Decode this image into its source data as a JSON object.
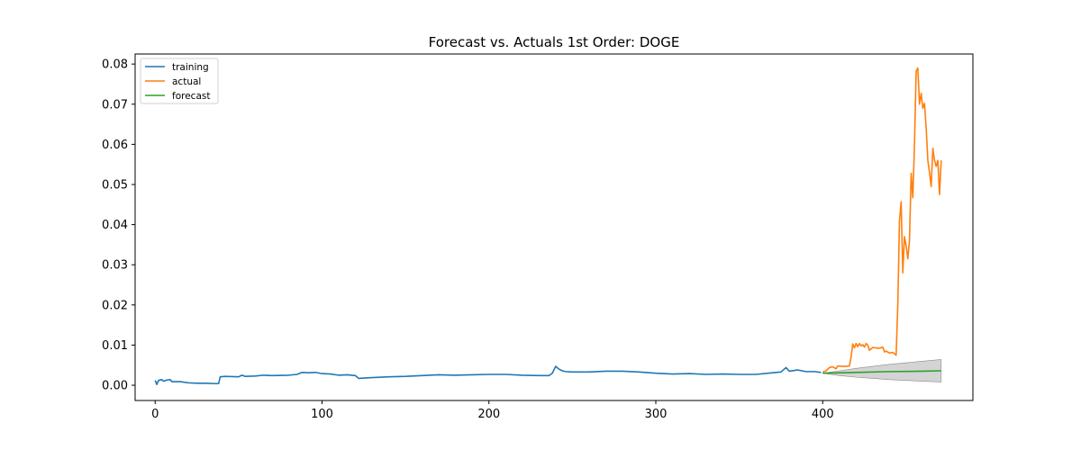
{
  "chart_data": {
    "type": "line",
    "title": "Forecast vs. Actuals 1st Order: DOGE",
    "xlabel": "",
    "ylabel": "",
    "xlim": [
      -12,
      490
    ],
    "ylim": [
      -0.0038,
      0.0825
    ],
    "xticks": [
      0,
      100,
      200,
      300,
      400
    ],
    "yticks": [
      0.0,
      0.01,
      0.02,
      0.03,
      0.04,
      0.05,
      0.06,
      0.07,
      0.08
    ],
    "ytick_labels": [
      "0.00",
      "0.01",
      "0.02",
      "0.03",
      "0.04",
      "0.05",
      "0.06",
      "0.07",
      "0.08"
    ],
    "grid": false,
    "legend_position": "top-left",
    "colors": {
      "training": "#1f77b4",
      "actual": "#ff7f0e",
      "forecast": "#2ca02c",
      "band": "#b0b0b0"
    },
    "series": [
      {
        "name": "training",
        "points": [
          [
            0,
            0.0012
          ],
          [
            1,
            0.0002
          ],
          [
            2,
            0.0012
          ],
          [
            4,
            0.0014
          ],
          [
            5,
            0.001
          ],
          [
            7,
            0.0013
          ],
          [
            9,
            0.0014
          ],
          [
            10,
            0.0009
          ],
          [
            15,
            0.0009
          ],
          [
            20,
            0.0006
          ],
          [
            25,
            0.0005
          ],
          [
            30,
            0.0005
          ],
          [
            36,
            0.0004
          ],
          [
            38,
            0.0004
          ],
          [
            39,
            0.0021
          ],
          [
            42,
            0.0022
          ],
          [
            50,
            0.0021
          ],
          [
            52,
            0.0025
          ],
          [
            54,
            0.0022
          ],
          [
            60,
            0.0023
          ],
          [
            65,
            0.0025
          ],
          [
            70,
            0.0024
          ],
          [
            80,
            0.0025
          ],
          [
            85,
            0.0027
          ],
          [
            88,
            0.0032
          ],
          [
            92,
            0.0031
          ],
          [
            96,
            0.0032
          ],
          [
            100,
            0.0029
          ],
          [
            105,
            0.0028
          ],
          [
            110,
            0.0025
          ],
          [
            115,
            0.0026
          ],
          [
            120,
            0.0024
          ],
          [
            122,
            0.0017
          ],
          [
            125,
            0.0018
          ],
          [
            130,
            0.0019
          ],
          [
            140,
            0.0021
          ],
          [
            150,
            0.0022
          ],
          [
            160,
            0.0024
          ],
          [
            170,
            0.0026
          ],
          [
            180,
            0.0025
          ],
          [
            190,
            0.0026
          ],
          [
            200,
            0.0027
          ],
          [
            210,
            0.0027
          ],
          [
            220,
            0.0025
          ],
          [
            230,
            0.0024
          ],
          [
            236,
            0.0024
          ],
          [
            238,
            0.003
          ],
          [
            240,
            0.0047
          ],
          [
            242,
            0.004
          ],
          [
            244,
            0.0036
          ],
          [
            246,
            0.0034
          ],
          [
            250,
            0.0033
          ],
          [
            260,
            0.0033
          ],
          [
            270,
            0.0035
          ],
          [
            280,
            0.0035
          ],
          [
            290,
            0.0033
          ],
          [
            300,
            0.003
          ],
          [
            310,
            0.0028
          ],
          [
            320,
            0.0029
          ],
          [
            330,
            0.0027
          ],
          [
            340,
            0.0028
          ],
          [
            350,
            0.0027
          ],
          [
            360,
            0.0027
          ],
          [
            370,
            0.0031
          ],
          [
            375,
            0.0033
          ],
          [
            378,
            0.0044
          ],
          [
            380,
            0.0035
          ],
          [
            385,
            0.0038
          ],
          [
            390,
            0.0034
          ],
          [
            395,
            0.0034
          ],
          [
            399,
            0.0032
          ]
        ]
      },
      {
        "name": "actual",
        "points": [
          [
            400,
            0.0033
          ],
          [
            402,
            0.0036
          ],
          [
            404,
            0.0044
          ],
          [
            406,
            0.0046
          ],
          [
            408,
            0.0041
          ],
          [
            409,
            0.0048
          ],
          [
            412,
            0.0047
          ],
          [
            414,
            0.0047
          ],
          [
            416,
            0.0048
          ],
          [
            417,
            0.007
          ],
          [
            418,
            0.0103
          ],
          [
            419,
            0.0093
          ],
          [
            420,
            0.0104
          ],
          [
            421,
            0.0096
          ],
          [
            422,
            0.0104
          ],
          [
            423,
            0.0098
          ],
          [
            424,
            0.0101
          ],
          [
            425,
            0.0095
          ],
          [
            426,
            0.0104
          ],
          [
            427,
            0.01
          ],
          [
            428,
            0.0087
          ],
          [
            430,
            0.0094
          ],
          [
            432,
            0.0093
          ],
          [
            434,
            0.0092
          ],
          [
            436,
            0.0095
          ],
          [
            437,
            0.0083
          ],
          [
            438,
            0.0085
          ],
          [
            440,
            0.008
          ],
          [
            442,
            0.0082
          ],
          [
            444,
            0.0075
          ],
          [
            445,
            0.02
          ],
          [
            446,
            0.041
          ],
          [
            447,
            0.0457
          ],
          [
            448,
            0.028
          ],
          [
            449,
            0.037
          ],
          [
            450,
            0.0348
          ],
          [
            451,
            0.0315
          ],
          [
            452,
            0.036
          ],
          [
            453,
            0.0528
          ],
          [
            454,
            0.0467
          ],
          [
            455,
            0.06
          ],
          [
            456,
            0.0782
          ],
          [
            457,
            0.079
          ],
          [
            458,
            0.07
          ],
          [
            459,
            0.0727
          ],
          [
            460,
            0.069
          ],
          [
            461,
            0.0702
          ],
          [
            462,
            0.064
          ],
          [
            463,
            0.056
          ],
          [
            464,
            0.053
          ],
          [
            465,
            0.0495
          ],
          [
            466,
            0.059
          ],
          [
            467,
            0.056
          ],
          [
            468,
            0.0545
          ],
          [
            469,
            0.056
          ],
          [
            470,
            0.0475
          ],
          [
            471,
            0.056
          ]
        ]
      },
      {
        "name": "forecast",
        "points": [
          [
            400,
            0.003
          ],
          [
            420,
            0.0032
          ],
          [
            440,
            0.0034
          ],
          [
            460,
            0.0035
          ],
          [
            471,
            0.0036
          ]
        ]
      }
    ],
    "confidence_band": {
      "x": [
        400,
        410,
        420,
        430,
        440,
        450,
        460,
        471
      ],
      "lower": [
        0.003,
        0.0024,
        0.002,
        0.0017,
        0.0014,
        0.0012,
        0.001,
        0.0008
      ],
      "upper": [
        0.003,
        0.0036,
        0.0042,
        0.0047,
        0.0052,
        0.0056,
        0.006,
        0.0064
      ]
    }
  }
}
